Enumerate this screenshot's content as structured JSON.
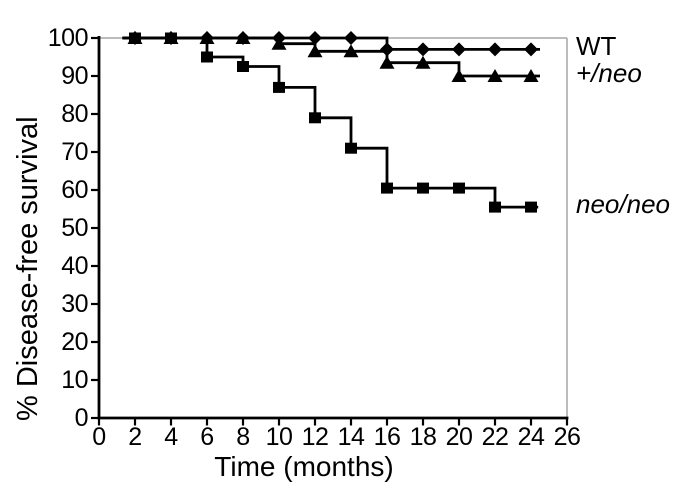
{
  "chart_data": {
    "type": "line",
    "subtype": "kaplan-meier-step",
    "title": "",
    "xlabel": "Time (months)",
    "ylabel": "% Disease-free survival",
    "xlim": [
      0,
      26
    ],
    "ylim": [
      0,
      100
    ],
    "x_ticks": [
      0,
      2,
      4,
      6,
      8,
      10,
      12,
      14,
      16,
      18,
      20,
      22,
      24,
      26
    ],
    "y_ticks": [
      0,
      10,
      20,
      30,
      40,
      50,
      60,
      70,
      80,
      90,
      100
    ],
    "grid": false,
    "legend_position": "right-outside",
    "colors": {
      "series": "#000000",
      "axis": "#000000",
      "frame": "#a6a6a6"
    },
    "series": [
      {
        "name": "WT",
        "italic": false,
        "marker": "diamond",
        "color": "#000000",
        "steps": [
          [
            1.3,
            100
          ],
          [
            16,
            100
          ],
          [
            16,
            97
          ],
          [
            24.5,
            97
          ]
        ],
        "markers": [
          [
            2,
            100
          ],
          [
            4,
            100
          ],
          [
            6,
            100
          ],
          [
            8,
            100
          ],
          [
            10,
            100
          ],
          [
            12,
            100
          ],
          [
            14,
            100
          ],
          [
            16,
            97
          ],
          [
            18,
            97
          ],
          [
            20,
            97
          ],
          [
            22,
            97
          ],
          [
            24,
            97
          ]
        ]
      },
      {
        "name": "+/neo",
        "italic": true,
        "marker": "triangle",
        "color": "#000000",
        "steps": [
          [
            1.3,
            100
          ],
          [
            10,
            100
          ],
          [
            10,
            98.5
          ],
          [
            12,
            98.5
          ],
          [
            12,
            96.5
          ],
          [
            16,
            96.5
          ],
          [
            16,
            93.5
          ],
          [
            20,
            93.5
          ],
          [
            20,
            90
          ],
          [
            24.5,
            90
          ]
        ],
        "markers": [
          [
            2,
            100
          ],
          [
            4,
            100
          ],
          [
            6,
            100
          ],
          [
            8,
            100
          ],
          [
            10,
            98.5
          ],
          [
            12,
            96.5
          ],
          [
            14,
            96.5
          ],
          [
            16,
            93.5
          ],
          [
            18,
            93.5
          ],
          [
            20,
            90
          ],
          [
            22,
            90
          ],
          [
            24,
            90
          ]
        ]
      },
      {
        "name": "neo/neo",
        "italic": true,
        "marker": "square",
        "color": "#000000",
        "steps": [
          [
            1.3,
            100
          ],
          [
            6,
            100
          ],
          [
            6,
            95
          ],
          [
            8,
            95
          ],
          [
            8,
            92.5
          ],
          [
            10,
            92.5
          ],
          [
            10,
            87
          ],
          [
            12,
            87
          ],
          [
            12,
            79
          ],
          [
            14,
            79
          ],
          [
            14,
            71
          ],
          [
            16,
            71
          ],
          [
            16,
            60.5
          ],
          [
            22,
            60.5
          ],
          [
            22,
            55.5
          ],
          [
            24.4,
            55.5
          ]
        ],
        "markers": [
          [
            2,
            100
          ],
          [
            4,
            100
          ],
          [
            6,
            95
          ],
          [
            8,
            92.5
          ],
          [
            10,
            87
          ],
          [
            12,
            79
          ],
          [
            14,
            71
          ],
          [
            16,
            60.5
          ],
          [
            18,
            60.5
          ],
          [
            20,
            60.5
          ],
          [
            22,
            55.5
          ],
          [
            24,
            55.5
          ]
        ]
      }
    ]
  }
}
